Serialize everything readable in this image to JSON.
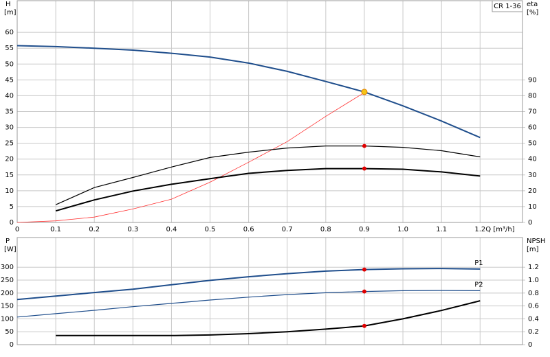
{
  "chart_data": [
    {
      "type": "line",
      "title": "CR 1-36",
      "xlabel": "Q [m³/h]",
      "ylabel": "H",
      "yunit": "[m]",
      "y2label": "eta",
      "y2unit": "[%]",
      "x": [
        0,
        0.1,
        0.2,
        0.3,
        0.4,
        0.5,
        0.6,
        0.7,
        0.8,
        0.9,
        1.0,
        1.1,
        1.2
      ],
      "xlim": [
        0,
        1.31
      ],
      "xticks": [
        0,
        0.1,
        0.2,
        0.3,
        0.4,
        0.5,
        0.6,
        0.7,
        0.8,
        0.9,
        {
          "value": 1,
          "label": "1.0"
        },
        1.1,
        1.2
      ],
      "ylim": [
        0,
        70
      ],
      "yticks": [
        0,
        5,
        10,
        15,
        20,
        25,
        30,
        35,
        40,
        45,
        50,
        55,
        60
      ],
      "y2lim": [
        0,
        140
      ],
      "y2ticks": [
        0,
        10,
        20,
        30,
        40,
        50,
        60,
        70,
        80,
        90
      ],
      "grid": true,
      "marker_x": 0.9,
      "series": [
        {
          "color": "#1f4e8c",
          "width": 2,
          "marker_color": "#f5c518",
          "values": [
            55.8,
            55.5,
            55.0,
            54.4,
            53.4,
            52.2,
            50.3,
            47.7,
            44.5,
            41.2,
            36.8,
            32.0,
            26.8
          ]
        },
        {
          "color": "#ff3030",
          "width": 0.8,
          "axis": "y2",
          "values": [
            0,
            1,
            3.4,
            8.5,
            14.7,
            25.4,
            38,
            51,
            67,
            82,
            null,
            null,
            null
          ]
        },
        {
          "color": "#000000",
          "width": 1.2,
          "axis": "y2",
          "marker_color": "#e00000",
          "values": [
            null,
            11.2,
            22,
            28.4,
            35,
            41,
            44.4,
            47,
            48.3,
            48.3,
            47.4,
            45.3,
            41.4
          ]
        },
        {
          "color": "#000000",
          "width": 2,
          "axis": "y2",
          "marker_color": "#e00000",
          "values": [
            null,
            7.3,
            14.2,
            19.8,
            24.1,
            27.6,
            31,
            32.8,
            34,
            34,
            33.6,
            31.9,
            29.3
          ]
        }
      ]
    },
    {
      "type": "line",
      "ylabel": "P",
      "yunit": "[W]",
      "y2label": "NPSH",
      "y2unit": "[m]",
      "x": [
        0,
        0.1,
        0.2,
        0.3,
        0.4,
        0.5,
        0.6,
        0.7,
        0.8,
        0.9,
        1.0,
        1.1,
        1.2
      ],
      "xlim": [
        0,
        1.31
      ],
      "ylim": [
        0,
        415
      ],
      "yticks": [
        0,
        50,
        100,
        150,
        200,
        250,
        300
      ],
      "y2lim": [
        0,
        1.66
      ],
      "y2ticks": [
        0,
        0.2,
        0.4,
        0.6,
        0.8,
        {
          "value": 1,
          "label": "1.0"
        },
        1.2
      ],
      "grid": true,
      "marker_x": 0.9,
      "series": [
        {
          "name": "P1",
          "color": "#1f4e8c",
          "width": 2,
          "marker_color": "#e00000",
          "values": [
            175,
            188,
            202,
            215,
            232,
            249,
            263,
            275,
            285,
            291,
            294,
            295,
            293
          ]
        },
        {
          "name": "P2",
          "color": "#1f4e8c",
          "width": 1.2,
          "marker_color": "#e00000",
          "values": [
            107,
            120,
            133,
            147,
            160,
            173,
            184,
            194,
            201,
            206,
            209,
            210,
            209
          ]
        },
        {
          "color": "#000000",
          "width": 2,
          "axis": "y2",
          "marker_color": "#e00000",
          "values": [
            null,
            0.14,
            0.14,
            0.14,
            0.14,
            0.15,
            0.17,
            0.2,
            0.24,
            0.29,
            0.4,
            0.53,
            0.68
          ]
        }
      ]
    }
  ]
}
